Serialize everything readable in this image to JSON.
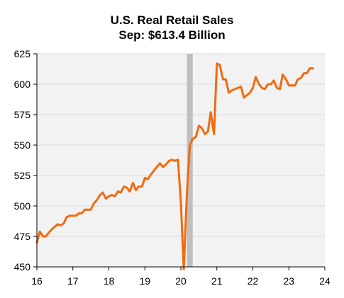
{
  "title": "U.S. Real Retail Sales",
  "subtitle": "Sep: $613.4 Billion",
  "colors": {
    "line": "#F26A10",
    "plot_bg": "#F2F2F2",
    "grid": "#D9D9D9",
    "recession": "#BFBFBF",
    "axis": "#000000"
  },
  "chart_data": {
    "type": "line",
    "title": "U.S. Real Retail Sales",
    "subtitle": "Sep: $613.4 Billion",
    "xlabel": "",
    "ylabel": "",
    "xlim": [
      16,
      24
    ],
    "ylim": [
      450,
      625
    ],
    "x_ticks": [
      16,
      17,
      18,
      19,
      20,
      21,
      22,
      23,
      24
    ],
    "y_ticks": [
      450,
      475,
      500,
      525,
      550,
      575,
      600,
      625
    ],
    "grid": true,
    "legend": "none",
    "recession_shading": [
      {
        "start": 20.17,
        "end": 20.33
      }
    ],
    "series": [
      {
        "x": [
          16.0,
          16.08,
          16.17,
          16.25,
          16.33,
          16.42,
          16.5,
          16.58,
          16.67,
          16.75,
          16.83,
          16.92,
          17.0,
          17.08,
          17.17,
          17.25,
          17.33,
          17.42,
          17.5,
          17.58,
          17.67,
          17.75,
          17.83,
          17.92,
          18.0,
          18.08,
          18.17,
          18.25,
          18.33,
          18.42,
          18.5,
          18.58,
          18.67,
          18.75,
          18.83,
          18.92,
          19.0,
          19.08,
          19.17,
          19.25,
          19.33,
          19.42,
          19.5,
          19.58,
          19.67,
          19.75,
          19.83,
          19.92,
          20.0,
          20.08,
          20.17,
          20.25,
          20.33,
          20.42,
          20.5,
          20.58,
          20.67,
          20.75,
          20.83,
          20.92,
          21.0,
          21.08,
          21.17,
          21.25,
          21.33,
          21.42,
          21.5,
          21.58,
          21.67,
          21.75,
          21.83,
          21.92,
          22.0,
          22.08,
          22.17,
          22.25,
          22.33,
          22.42,
          22.5,
          22.58,
          22.67,
          22.75,
          22.83,
          22.92,
          23.0,
          23.08,
          23.17,
          23.25,
          23.33,
          23.42,
          23.5,
          23.58,
          23.67
        ],
        "y": [
          470,
          479,
          475,
          475,
          478,
          481,
          483,
          485,
          484,
          486,
          491,
          492,
          492,
          492,
          494,
          494,
          497,
          497,
          497,
          502,
          505,
          509,
          511,
          506,
          508,
          509,
          508,
          512,
          511,
          516,
          515,
          512,
          519,
          513,
          516,
          516,
          523,
          522,
          526,
          529,
          532,
          535,
          532,
          534,
          537,
          538,
          537,
          538,
          503,
          448,
          511,
          550,
          555,
          557,
          566,
          564,
          559,
          561,
          577,
          559,
          617,
          616,
          604,
          604,
          593,
          595,
          596,
          597,
          598,
          589,
          591,
          593,
          597,
          606,
          600,
          597,
          596,
          600,
          600,
          603,
          597,
          596,
          608,
          604,
          599,
          599,
          599,
          604,
          605,
          609,
          609,
          613,
          613
        ]
      }
    ]
  }
}
